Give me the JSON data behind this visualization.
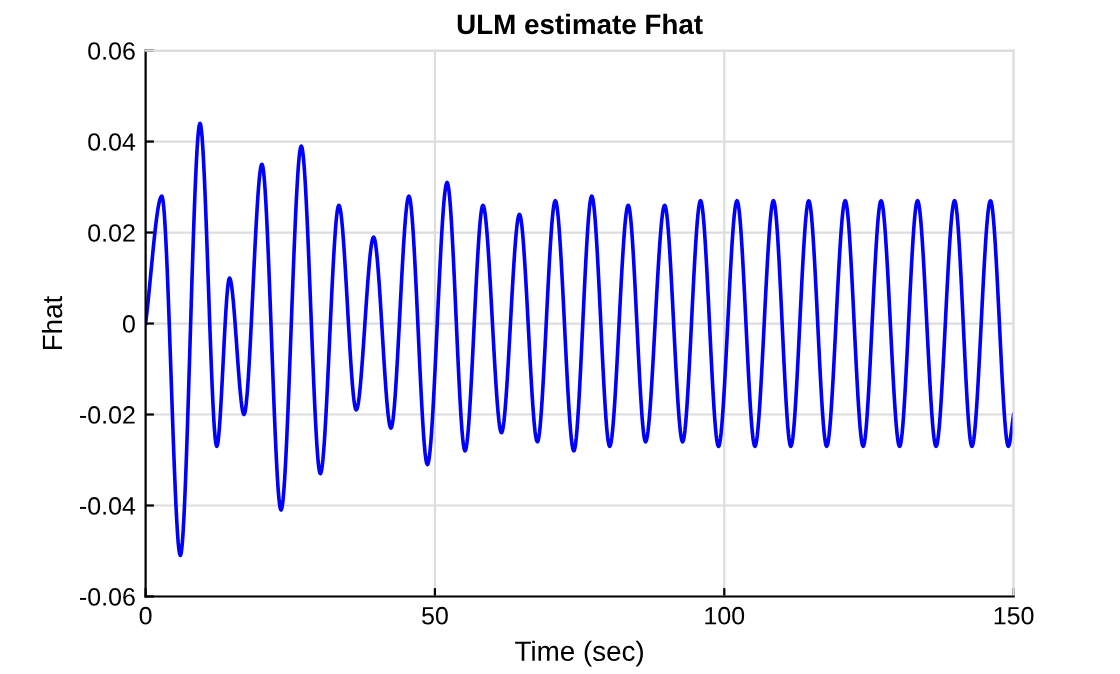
{
  "chart_data": {
    "type": "line",
    "title": "ULM estimate Fhat",
    "xlabel": "Time (sec)",
    "ylabel": "Fhat",
    "x": [
      0,
      2.8,
      6.0,
      9.4,
      12.3,
      14.5,
      17.0,
      20.1,
      23.4,
      26.9,
      30.2,
      33.4,
      36.4,
      39.4,
      42.4,
      45.5,
      48.7,
      52.1,
      55.2,
      58.3,
      61.5,
      64.6,
      67.7,
      70.8,
      74.0,
      77.1,
      80.2,
      83.4,
      86.4,
      89.7,
      92.8,
      95.9,
      99.0,
      102.2,
      105.3,
      108.5,
      111.5,
      114.6,
      117.7,
      120.9,
      124.0,
      127.1,
      130.3,
      133.4,
      136.6,
      139.8,
      142.8,
      146.0,
      149.1,
      150
    ],
    "series": [
      {
        "color": "#0000ff",
        "values": [
          0,
          0.028,
          -0.051,
          0.044,
          -0.027,
          0.01,
          -0.02,
          0.035,
          -0.041,
          0.039,
          -0.033,
          0.026,
          -0.019,
          0.019,
          -0.023,
          0.028,
          -0.031,
          0.031,
          -0.028,
          0.026,
          -0.024,
          0.024,
          -0.026,
          0.027,
          -0.028,
          0.028,
          -0.027,
          0.026,
          -0.026,
          0.026,
          -0.026,
          0.027,
          -0.027,
          0.027,
          -0.027,
          0.027,
          -0.027,
          0.027,
          -0.027,
          0.027,
          -0.027,
          0.027,
          -0.027,
          0.027,
          -0.027,
          0.027,
          -0.027,
          0.027,
          -0.027,
          -0.02
        ]
      }
    ],
    "xlim": [
      0,
      150
    ],
    "ylim": [
      -0.06,
      0.06
    ],
    "xticks": [
      0,
      50,
      100,
      150
    ],
    "yticks": [
      {
        "value": -0.06,
        "label": "-0.06"
      },
      {
        "value": -0.04,
        "label": "-0.04"
      },
      {
        "value": -0.02,
        "label": "-0.02"
      },
      0,
      0.02,
      0.04,
      0.06
    ],
    "grid": true,
    "line_style": "solid",
    "marker": "none"
  }
}
